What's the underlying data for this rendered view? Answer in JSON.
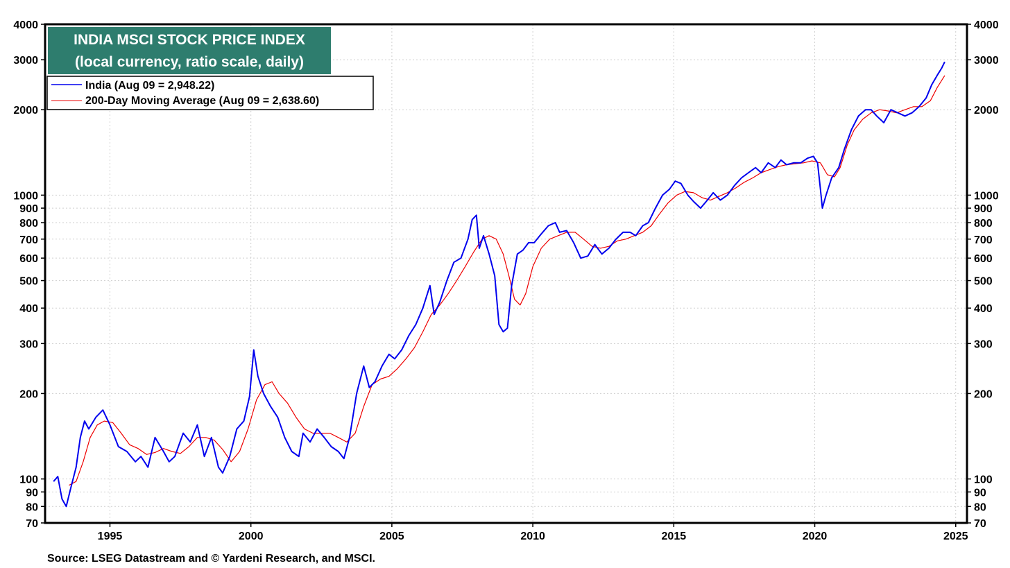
{
  "chart_data": {
    "type": "line",
    "title": "INDIA MSCI STOCK PRICE INDEX",
    "subtitle": "(local currency, ratio scale, daily)",
    "scale": "log",
    "ylim": [
      70,
      4000
    ],
    "xlim": [
      1992.7,
      2025.4
    ],
    "y_ticks": [
      70,
      80,
      90,
      100,
      200,
      300,
      400,
      500,
      600,
      700,
      800,
      900,
      1000,
      2000,
      3000,
      4000
    ],
    "y_tick_labels": [
      "70",
      "80",
      "90",
      "100",
      "200",
      "300",
      "400",
      "500",
      "600",
      "700",
      "800",
      "900",
      "1000",
      "2000",
      "3000",
      "4000"
    ],
    "x_ticks": [
      1995,
      2000,
      2005,
      2010,
      2015,
      2020,
      2025
    ],
    "x_tick_labels": [
      "1995",
      "2000",
      "2005",
      "2010",
      "2015",
      "2020",
      "2025"
    ],
    "grid": true,
    "legend_position": "top-left",
    "series": [
      {
        "name": "India (Aug 09 = 2,948.22)",
        "color": "#0000ee",
        "x": [
          1993.0,
          1993.15,
          1993.3,
          1993.45,
          1993.6,
          1993.8,
          1993.95,
          1994.1,
          1994.25,
          1994.5,
          1994.75,
          1995.0,
          1995.3,
          1995.6,
          1995.9,
          1996.1,
          1996.35,
          1996.6,
          1996.9,
          1997.1,
          1997.3,
          1997.6,
          1997.85,
          1998.1,
          1998.35,
          1998.6,
          1998.85,
          1999.0,
          1999.25,
          1999.5,
          1999.75,
          1999.95,
          2000.1,
          2000.25,
          2000.45,
          2000.7,
          2000.95,
          2001.2,
          2001.45,
          2001.7,
          2001.85,
          2002.1,
          2002.35,
          2002.6,
          2002.85,
          2003.1,
          2003.3,
          2003.5,
          2003.75,
          2004.0,
          2004.2,
          2004.4,
          2004.65,
          2004.9,
          2005.1,
          2005.35,
          2005.6,
          2005.85,
          2006.1,
          2006.35,
          2006.5,
          2006.7,
          2006.95,
          2007.2,
          2007.45,
          2007.7,
          2007.85,
          2008.0,
          2008.1,
          2008.25,
          2008.45,
          2008.65,
          2008.8,
          2008.95,
          2009.1,
          2009.25,
          2009.45,
          2009.65,
          2009.85,
          2010.05,
          2010.3,
          2010.55,
          2010.8,
          2010.95,
          2011.2,
          2011.45,
          2011.7,
          2011.95,
          2012.2,
          2012.45,
          2012.7,
          2012.95,
          2013.2,
          2013.45,
          2013.65,
          2013.9,
          2014.1,
          2014.35,
          2014.6,
          2014.85,
          2015.05,
          2015.25,
          2015.5,
          2015.7,
          2015.95,
          2016.15,
          2016.4,
          2016.65,
          2016.9,
          2017.15,
          2017.4,
          2017.65,
          2017.9,
          2018.1,
          2018.35,
          2018.6,
          2018.8,
          2019.0,
          2019.25,
          2019.5,
          2019.75,
          2019.95,
          2020.1,
          2020.2,
          2020.27,
          2020.4,
          2020.6,
          2020.85,
          2021.05,
          2021.3,
          2021.55,
          2021.8,
          2022.0,
          2022.2,
          2022.45,
          2022.7,
          2022.95,
          2023.2,
          2023.45,
          2023.7,
          2023.95,
          2024.15,
          2024.35,
          2024.5,
          2024.61
        ],
        "values": [
          98,
          102,
          85,
          80,
          92,
          110,
          140,
          160,
          150,
          165,
          175,
          155,
          130,
          125,
          115,
          120,
          110,
          140,
          125,
          115,
          120,
          145,
          135,
          155,
          120,
          140,
          110,
          105,
          120,
          150,
          160,
          195,
          285,
          230,
          200,
          180,
          165,
          140,
          125,
          120,
          145,
          135,
          150,
          140,
          130,
          125,
          118,
          140,
          200,
          250,
          210,
          220,
          250,
          275,
          265,
          285,
          320,
          350,
          400,
          480,
          380,
          420,
          500,
          580,
          600,
          700,
          820,
          850,
          650,
          720,
          620,
          520,
          350,
          330,
          340,
          480,
          620,
          640,
          680,
          680,
          730,
          780,
          800,
          740,
          750,
          680,
          600,
          610,
          670,
          620,
          650,
          700,
          740,
          740,
          720,
          780,
          800,
          900,
          1000,
          1050,
          1120,
          1100,
          1000,
          950,
          900,
          950,
          1020,
          960,
          1000,
          1080,
          1150,
          1200,
          1250,
          1200,
          1300,
          1250,
          1330,
          1280,
          1300,
          1300,
          1350,
          1370,
          1300,
          1050,
          900,
          1000,
          1150,
          1250,
          1450,
          1700,
          1900,
          2000,
          2000,
          1900,
          1800,
          2000,
          1950,
          1900,
          1950,
          2050,
          2200,
          2450,
          2650,
          2800,
          2948.22
        ]
      },
      {
        "name": "200-Day Moving Average (Aug 09 = 2,638.60)",
        "color": "#ee0000",
        "x": [
          1993.55,
          1993.8,
          1994.05,
          1994.3,
          1994.55,
          1994.8,
          1995.1,
          1995.4,
          1995.7,
          1996.0,
          1996.3,
          1996.6,
          1996.9,
          1997.2,
          1997.5,
          1997.8,
          1998.1,
          1998.4,
          1998.7,
          1999.0,
          1999.3,
          1999.6,
          1999.9,
          2000.2,
          2000.5,
          2000.75,
          2001.0,
          2001.3,
          2001.6,
          2001.9,
          2002.2,
          2002.5,
          2002.8,
          2003.1,
          2003.4,
          2003.7,
          2004.0,
          2004.3,
          2004.6,
          2004.9,
          2005.2,
          2005.5,
          2005.8,
          2006.1,
          2006.4,
          2006.7,
          2007.0,
          2007.3,
          2007.6,
          2007.9,
          2008.2,
          2008.45,
          2008.7,
          2008.95,
          2009.15,
          2009.35,
          2009.55,
          2009.75,
          2010.0,
          2010.3,
          2010.6,
          2010.9,
          2011.2,
          2011.5,
          2011.8,
          2012.1,
          2012.4,
          2012.7,
          2013.0,
          2013.3,
          2013.6,
          2013.9,
          2014.2,
          2014.5,
          2014.8,
          2015.1,
          2015.4,
          2015.7,
          2016.0,
          2016.3,
          2016.6,
          2016.9,
          2017.2,
          2017.5,
          2017.8,
          2018.1,
          2018.4,
          2018.7,
          2019.0,
          2019.3,
          2019.6,
          2019.9,
          2020.2,
          2020.45,
          2020.7,
          2020.9,
          2021.15,
          2021.4,
          2021.7,
          2022.0,
          2022.3,
          2022.6,
          2022.9,
          2023.2,
          2023.5,
          2023.8,
          2024.1,
          2024.35,
          2024.61
        ],
        "values": [
          95,
          98,
          115,
          140,
          155,
          160,
          158,
          145,
          132,
          128,
          122,
          124,
          128,
          125,
          123,
          130,
          140,
          140,
          137,
          127,
          115,
          125,
          150,
          190,
          215,
          220,
          200,
          185,
          165,
          150,
          145,
          145,
          145,
          140,
          135,
          145,
          180,
          215,
          225,
          230,
          245,
          265,
          290,
          330,
          380,
          410,
          450,
          500,
          560,
          630,
          700,
          720,
          700,
          620,
          520,
          430,
          410,
          450,
          560,
          650,
          700,
          720,
          740,
          740,
          700,
          660,
          650,
          660,
          690,
          700,
          720,
          740,
          780,
          860,
          940,
          1000,
          1030,
          1020,
          980,
          960,
          990,
          1020,
          1060,
          1110,
          1150,
          1200,
          1230,
          1260,
          1280,
          1290,
          1300,
          1320,
          1300,
          1180,
          1160,
          1250,
          1500,
          1700,
          1850,
          1950,
          2000,
          1980,
          1950,
          2000,
          2050,
          2050,
          2150,
          2400,
          2638.6
        ]
      }
    ],
    "legend": [
      "India (Aug 09 = 2,948.22)",
      "200-Day Moving Average (Aug 09 = 2,638.60)"
    ],
    "source": "Source: LSEG Datastream and © Yardeni Research, and MSCI."
  }
}
